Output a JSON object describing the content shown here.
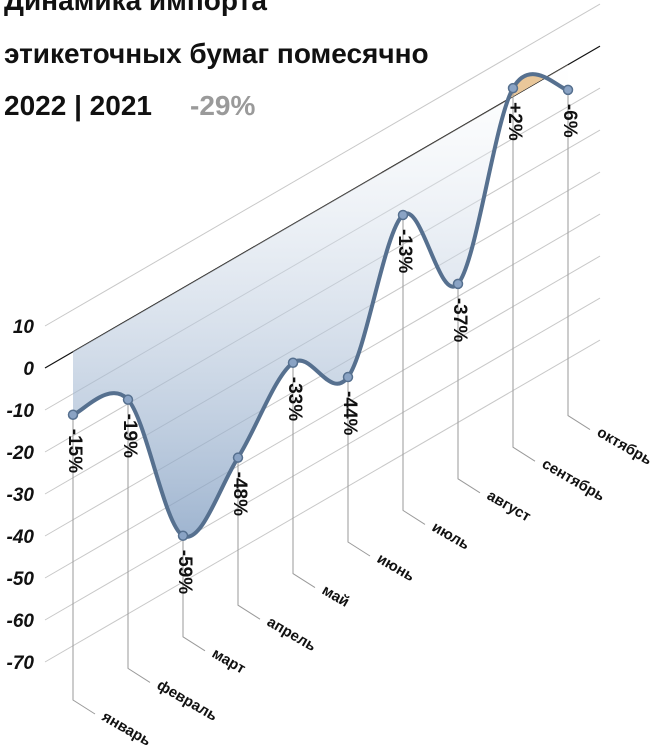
{
  "chart_data": {
    "type": "line",
    "title": [
      "Динамика импорта",
      "этикеточных бумаг помесячно"
    ],
    "subtitle": "2022 | 2021",
    "annotation": "-29%",
    "categories": [
      "январь",
      "февраль",
      "март",
      "апрель",
      "май",
      "июнь",
      "июль",
      "август",
      "сентябрь",
      "октябрь"
    ],
    "series": [
      {
        "name": "2022 | 2021",
        "color": "#56708f",
        "values": [
          -15,
          -19,
          -59,
          -48,
          -33,
          -44,
          -13,
          -37,
          2,
          -6
        ],
        "value_labels": [
          "-15%",
          "-19%",
          "-59%",
          "-48%",
          "-33%",
          "-44%",
          "-13%",
          "-37%",
          "+2%",
          "-6%"
        ]
      }
    ],
    "ylim": [
      -70,
      10
    ],
    "yticks": [
      10,
      0,
      -10,
      -20,
      -30,
      -40,
      -50,
      -60,
      -70
    ],
    "grid": true
  }
}
